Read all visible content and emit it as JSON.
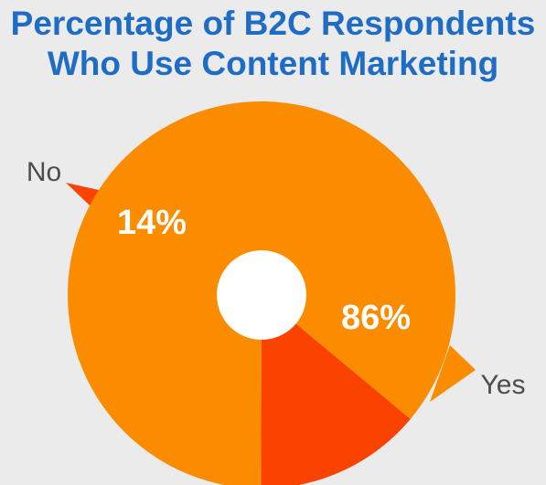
{
  "title_line1": "Percentage of B2C Respondents",
  "title_line2": "Who Use Content Marketing",
  "colors": {
    "background": "#ebebeb",
    "title": "#1f6cc4",
    "yes": "#fb8c00",
    "no": "#fa4300",
    "hole": "#ffffff",
    "category_text": "#4d4d4d"
  },
  "chart_data": {
    "type": "pie",
    "style": "donut",
    "title": "Percentage of B2C Respondents Who Use Content Marketing",
    "slices": [
      {
        "category": "No",
        "value": 14,
        "label": "14%"
      },
      {
        "category": "Yes",
        "value": 86,
        "label": "86%"
      }
    ],
    "legend": "callout-labels"
  }
}
